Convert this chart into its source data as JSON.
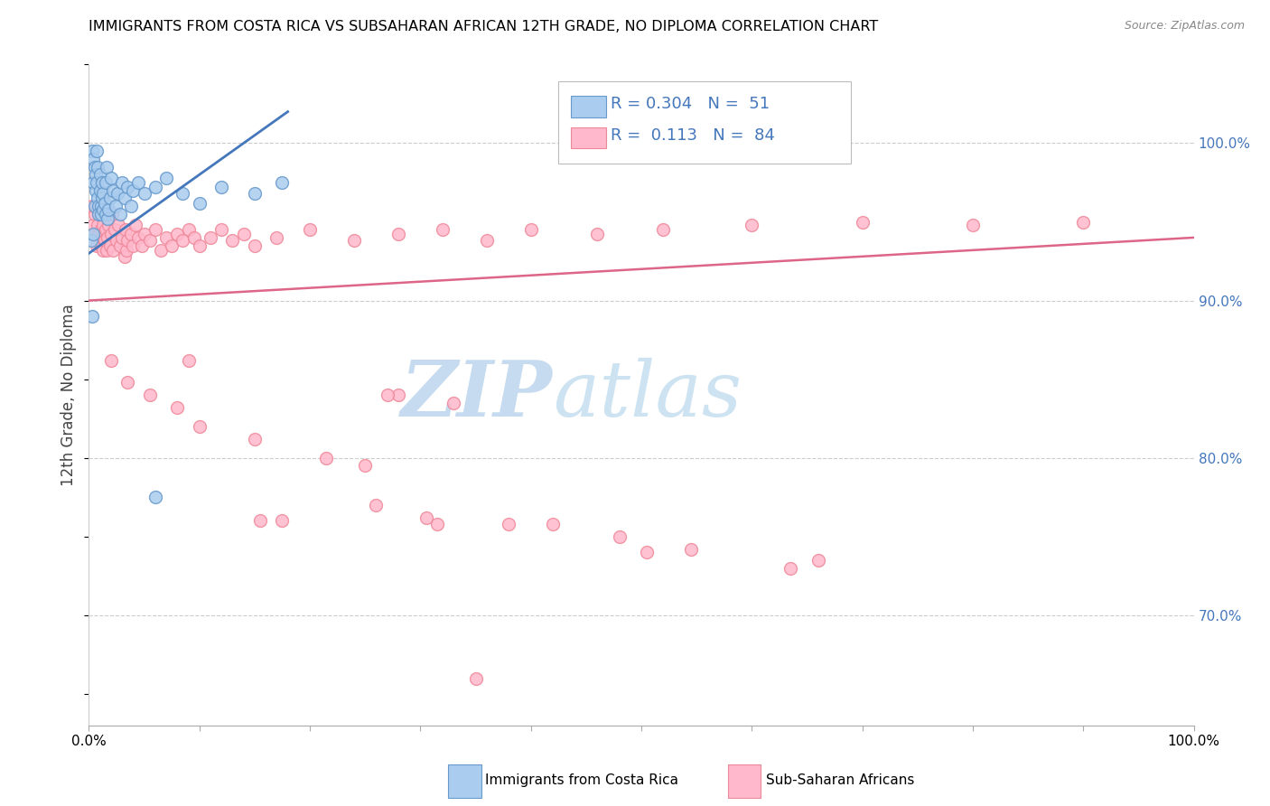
{
  "title": "IMMIGRANTS FROM COSTA RICA VS SUBSAHARAN AFRICAN 12TH GRADE, NO DIPLOMA CORRELATION CHART",
  "source": "Source: ZipAtlas.com",
  "ylabel": "12th Grade, No Diploma",
  "xlim": [
    0.0,
    1.0
  ],
  "ylim": [
    0.63,
    1.05
  ],
  "right_yticks": [
    0.7,
    0.8,
    0.9,
    1.0
  ],
  "right_yticklabels": [
    "70.0%",
    "80.0%",
    "90.0%",
    "100.0%"
  ],
  "color_blue": "#aaccee",
  "color_pink": "#ffb8cc",
  "color_blue_edge": "#6699cc",
  "color_pink_edge": "#ee8899",
  "color_blue_line": "#4477bb",
  "color_pink_line": "#dd6688",
  "color_rn_blue": "#4477bb",
  "watermark": "ZIPatlas",
  "watermark_zip_color": "#c8dff0",
  "watermark_atlas_color": "#c0d8e8",
  "blue_points": [
    [
      0.003,
      0.995
    ],
    [
      0.004,
      0.975
    ],
    [
      0.004,
      0.99
    ],
    [
      0.005,
      0.985
    ],
    [
      0.005,
      0.96
    ],
    [
      0.006,
      0.97
    ],
    [
      0.006,
      0.98
    ],
    [
      0.007,
      0.995
    ],
    [
      0.007,
      0.975
    ],
    [
      0.008,
      0.965
    ],
    [
      0.008,
      0.985
    ],
    [
      0.009,
      0.96
    ],
    [
      0.009,
      0.955
    ],
    [
      0.01,
      0.97
    ],
    [
      0.01,
      0.98
    ],
    [
      0.011,
      0.96
    ],
    [
      0.011,
      0.955
    ],
    [
      0.012,
      0.965
    ],
    [
      0.012,
      0.975
    ],
    [
      0.013,
      0.958
    ],
    [
      0.013,
      0.968
    ],
    [
      0.014,
      0.962
    ],
    [
      0.015,
      0.955
    ],
    [
      0.015,
      0.975
    ],
    [
      0.016,
      0.985
    ],
    [
      0.017,
      0.952
    ],
    [
      0.018,
      0.958
    ],
    [
      0.019,
      0.965
    ],
    [
      0.02,
      0.978
    ],
    [
      0.022,
      0.97
    ],
    [
      0.024,
      0.96
    ],
    [
      0.026,
      0.968
    ],
    [
      0.028,
      0.955
    ],
    [
      0.03,
      0.975
    ],
    [
      0.032,
      0.965
    ],
    [
      0.035,
      0.972
    ],
    [
      0.038,
      0.96
    ],
    [
      0.04,
      0.97
    ],
    [
      0.045,
      0.975
    ],
    [
      0.05,
      0.968
    ],
    [
      0.06,
      0.972
    ],
    [
      0.07,
      0.978
    ],
    [
      0.085,
      0.968
    ],
    [
      0.1,
      0.962
    ],
    [
      0.12,
      0.972
    ],
    [
      0.15,
      0.968
    ],
    [
      0.175,
      0.975
    ],
    [
      0.003,
      0.89
    ],
    [
      0.06,
      0.775
    ],
    [
      0.002,
      0.938
    ],
    [
      0.004,
      0.942
    ]
  ],
  "pink_points": [
    [
      0.003,
      0.96
    ],
    [
      0.004,
      0.948
    ],
    [
      0.005,
      0.955
    ],
    [
      0.006,
      0.942
    ],
    [
      0.006,
      0.96
    ],
    [
      0.007,
      0.935
    ],
    [
      0.008,
      0.948
    ],
    [
      0.008,
      0.958
    ],
    [
      0.009,
      0.942
    ],
    [
      0.01,
      0.955
    ],
    [
      0.011,
      0.935
    ],
    [
      0.011,
      0.945
    ],
    [
      0.012,
      0.94
    ],
    [
      0.012,
      0.96
    ],
    [
      0.013,
      0.932
    ],
    [
      0.013,
      0.948
    ],
    [
      0.014,
      0.938
    ],
    [
      0.015,
      0.945
    ],
    [
      0.015,
      0.958
    ],
    [
      0.016,
      0.932
    ],
    [
      0.017,
      0.94
    ],
    [
      0.018,
      0.948
    ],
    [
      0.019,
      0.935
    ],
    [
      0.02,
      0.942
    ],
    [
      0.021,
      0.955
    ],
    [
      0.022,
      0.932
    ],
    [
      0.023,
      0.945
    ],
    [
      0.025,
      0.938
    ],
    [
      0.027,
      0.948
    ],
    [
      0.028,
      0.935
    ],
    [
      0.03,
      0.94
    ],
    [
      0.032,
      0.928
    ],
    [
      0.033,
      0.945
    ],
    [
      0.034,
      0.932
    ],
    [
      0.035,
      0.938
    ],
    [
      0.038,
      0.942
    ],
    [
      0.04,
      0.935
    ],
    [
      0.042,
      0.948
    ],
    [
      0.045,
      0.94
    ],
    [
      0.048,
      0.935
    ],
    [
      0.05,
      0.942
    ],
    [
      0.055,
      0.938
    ],
    [
      0.06,
      0.945
    ],
    [
      0.065,
      0.932
    ],
    [
      0.07,
      0.94
    ],
    [
      0.075,
      0.935
    ],
    [
      0.08,
      0.942
    ],
    [
      0.085,
      0.938
    ],
    [
      0.09,
      0.945
    ],
    [
      0.095,
      0.94
    ],
    [
      0.1,
      0.935
    ],
    [
      0.11,
      0.94
    ],
    [
      0.12,
      0.945
    ],
    [
      0.13,
      0.938
    ],
    [
      0.14,
      0.942
    ],
    [
      0.15,
      0.935
    ],
    [
      0.17,
      0.94
    ],
    [
      0.2,
      0.945
    ],
    [
      0.24,
      0.938
    ],
    [
      0.28,
      0.942
    ],
    [
      0.32,
      0.945
    ],
    [
      0.36,
      0.938
    ],
    [
      0.4,
      0.945
    ],
    [
      0.46,
      0.942
    ],
    [
      0.52,
      0.945
    ],
    [
      0.6,
      0.948
    ],
    [
      0.7,
      0.95
    ],
    [
      0.8,
      0.948
    ],
    [
      0.9,
      0.95
    ],
    [
      0.02,
      0.862
    ],
    [
      0.035,
      0.848
    ],
    [
      0.055,
      0.84
    ],
    [
      0.08,
      0.832
    ],
    [
      0.09,
      0.862
    ],
    [
      0.1,
      0.82
    ],
    [
      0.15,
      0.812
    ],
    [
      0.155,
      0.76
    ],
    [
      0.175,
      0.76
    ],
    [
      0.215,
      0.8
    ],
    [
      0.25,
      0.795
    ],
    [
      0.26,
      0.77
    ],
    [
      0.305,
      0.762
    ],
    [
      0.315,
      0.758
    ],
    [
      0.38,
      0.758
    ],
    [
      0.42,
      0.758
    ],
    [
      0.48,
      0.75
    ],
    [
      0.505,
      0.74
    ],
    [
      0.545,
      0.742
    ],
    [
      0.635,
      0.73
    ],
    [
      0.66,
      0.735
    ],
    [
      0.28,
      0.84
    ],
    [
      0.27,
      0.84
    ],
    [
      0.33,
      0.835
    ],
    [
      0.35,
      0.66
    ]
  ],
  "blue_line_x": [
    0.0,
    0.18
  ],
  "blue_line_y": [
    0.93,
    1.02
  ],
  "pink_line_x": [
    0.0,
    1.0
  ],
  "pink_line_y": [
    0.9,
    0.94
  ]
}
